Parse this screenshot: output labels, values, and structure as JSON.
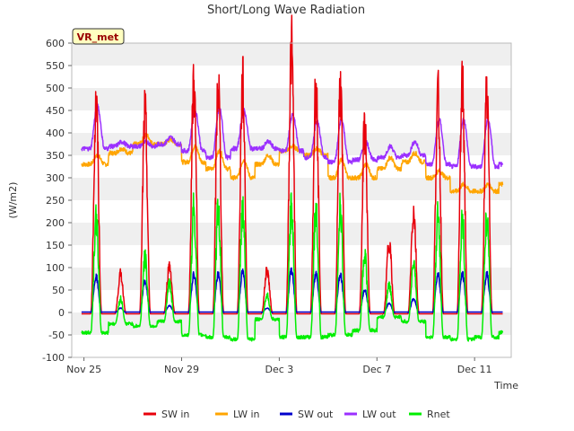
{
  "chart_data": {
    "type": "line",
    "title": "Short/Long Wave Radiation",
    "xlabel": "Time",
    "ylabel": "(W/m2)",
    "station_tag": "VR_met",
    "ylim": [
      -100,
      600
    ],
    "yticks": [
      -100,
      -50,
      0,
      50,
      100,
      150,
      200,
      250,
      300,
      350,
      400,
      450,
      500,
      550,
      600
    ],
    "xlim": [
      -0.5,
      17.5
    ],
    "xticks": [
      {
        "value": 0,
        "label": "Nov 25"
      },
      {
        "value": 4,
        "label": "Nov 29"
      },
      {
        "value": 8,
        "label": "Dec 3"
      },
      {
        "value": 12,
        "label": "Dec 7"
      },
      {
        "value": 16,
        "label": "Dec 11"
      }
    ],
    "grid": "horizontal bands",
    "legend_position": "bottom",
    "days": [
      0,
      1,
      2,
      3,
      4,
      5,
      6,
      7,
      8,
      9,
      10,
      11,
      12,
      13,
      14,
      15,
      16,
      17
    ],
    "series": [
      {
        "name": "SW in",
        "color": "#e8000b",
        "daily_peak": [
          460,
          85,
          440,
          105,
          510,
          510,
          505,
          95,
          585,
          500,
          505,
          410,
          160,
          225,
          475,
          495,
          480,
          0
        ],
        "night": -3
      },
      {
        "name": "LW in",
        "color": "#ffa500",
        "daily_base": [
          330,
          355,
          375,
          375,
          335,
          320,
          300,
          330,
          360,
          350,
          300,
          300,
          320,
          335,
          300,
          270,
          270,
          285
        ],
        "daily_peak": [
          350,
          365,
          395,
          385,
          370,
          360,
          340,
          350,
          370,
          365,
          340,
          330,
          345,
          355,
          315,
          285,
          285,
          300
        ]
      },
      {
        "name": "SW out",
        "color": "#0000cc",
        "daily_peak": [
          80,
          10,
          70,
          15,
          85,
          85,
          90,
          10,
          95,
          85,
          85,
          50,
          20,
          30,
          85,
          85,
          85,
          0
        ],
        "night": 1
      },
      {
        "name": "LW out",
        "color": "#9b30ff",
        "daily_base": [
          365,
          370,
          370,
          375,
          360,
          345,
          365,
          365,
          360,
          345,
          335,
          340,
          345,
          350,
          330,
          325,
          325,
          330
        ],
        "daily_peak": [
          460,
          380,
          380,
          390,
          450,
          455,
          450,
          380,
          440,
          425,
          430,
          380,
          370,
          380,
          430,
          430,
          430,
          340
        ]
      },
      {
        "name": "Rnet",
        "color": "#00ee00",
        "daily_peak": [
          210,
          30,
          120,
          65,
          235,
          230,
          230,
          40,
          235,
          225,
          230,
          130,
          60,
          110,
          210,
          205,
          210,
          0
        ],
        "night": [
          -45,
          -25,
          -30,
          -20,
          -50,
          -55,
          -60,
          -15,
          -55,
          -55,
          -50,
          -40,
          -10,
          -20,
          -55,
          -60,
          -55,
          -45
        ]
      }
    ]
  }
}
